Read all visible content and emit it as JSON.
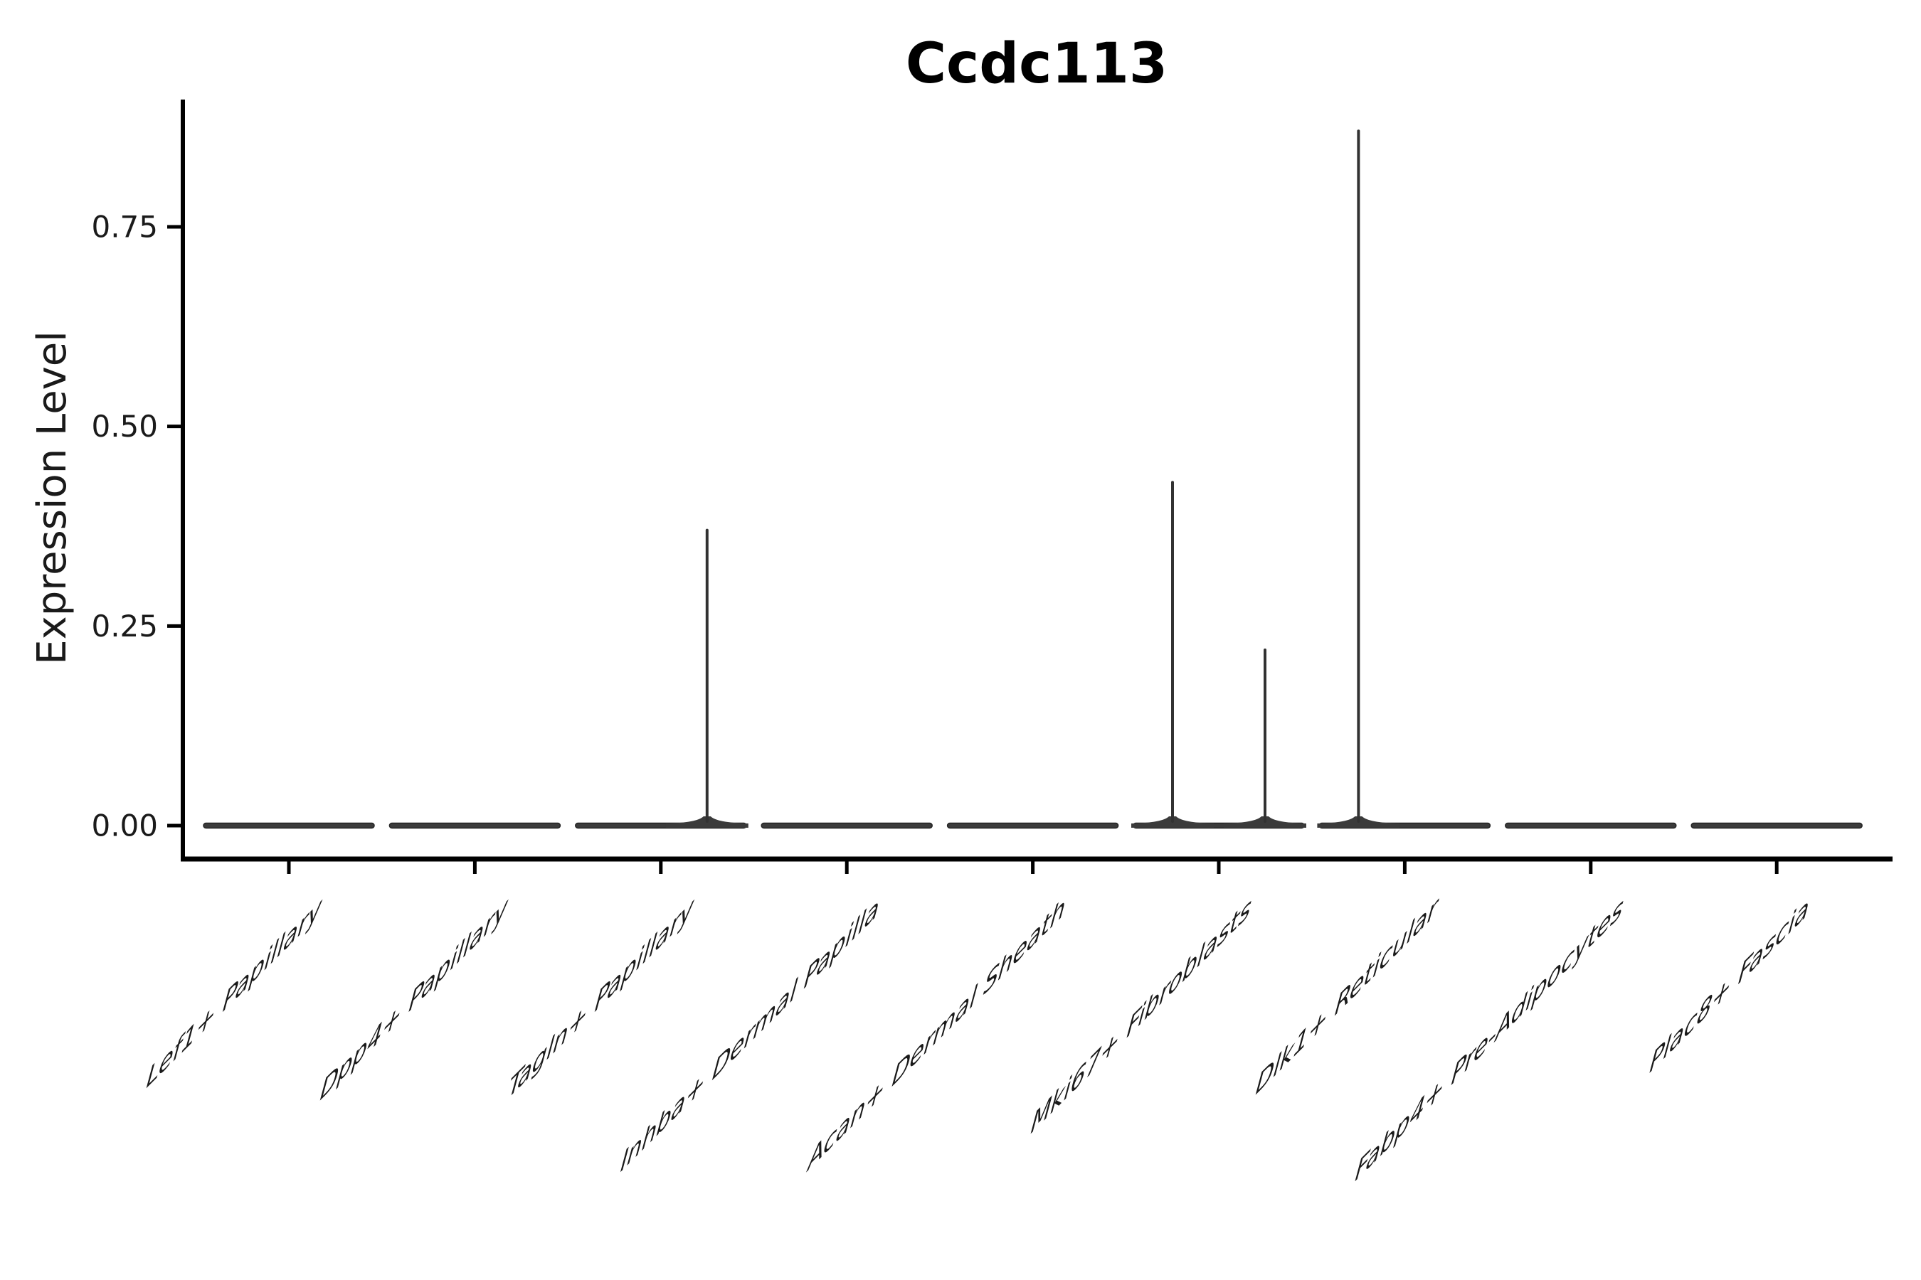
{
  "title": "Ccdc113",
  "colors": {
    "background": "#ffffff",
    "violin_fill": "#3b3b3b",
    "violin_edge": "#242424",
    "spike_color": "#323232",
    "axis_color": "#000000",
    "text_color": "#1a1a1a"
  },
  "chart_data": {
    "type": "violin",
    "title": "Ccdc113",
    "xlabel": "",
    "ylabel": "Expression Level",
    "ylim": [
      0,
      0.91
    ],
    "grid": false,
    "legend_position": "none",
    "yticks": [
      {
        "value": 0.0,
        "label": "0.00"
      },
      {
        "value": 0.25,
        "label": "0.25"
      },
      {
        "value": 0.5,
        "label": "0.50"
      },
      {
        "value": 0.75,
        "label": "0.75"
      }
    ],
    "categories": [
      "Lef1+ Papillary",
      "Dpp4+ Papillary",
      "Tagln+ Papillary",
      "Inhba+ Dermal Papilla",
      "Acan+ Dermal Sheath",
      "Mki67+ Fibroblasts",
      "Dlk1+ Reticular",
      "Fabp4+ Pre-Adipocytes",
      "Plac8+ Fascia"
    ],
    "split_violins_per_category": 2,
    "violins": [
      {
        "category": "Lef1+ Papillary",
        "base": 0.0,
        "spikes": []
      },
      {
        "category": "Dpp4+ Papillary",
        "base": 0.0,
        "spikes": []
      },
      {
        "category": "Tagln+ Papillary",
        "base": 0.0,
        "spikes": [
          {
            "side": "right",
            "value": 0.37
          }
        ]
      },
      {
        "category": "Inhba+ Dermal Papilla",
        "base": 0.0,
        "spikes": []
      },
      {
        "category": "Acan+ Dermal Sheath",
        "base": 0.0,
        "spikes": []
      },
      {
        "category": "Mki67+ Fibroblasts",
        "base": 0.0,
        "spikes": [
          {
            "side": "left",
            "value": 0.43
          },
          {
            "side": "right",
            "value": 0.22
          }
        ]
      },
      {
        "category": "Dlk1+ Reticular",
        "base": 0.0,
        "spikes": [
          {
            "side": "left",
            "value": 0.87
          }
        ]
      },
      {
        "category": "Fabp4+ Pre-Adipocytes",
        "base": 0.0,
        "spikes": []
      },
      {
        "category": "Plac8+ Fascia",
        "base": 0.0,
        "spikes": []
      }
    ]
  }
}
